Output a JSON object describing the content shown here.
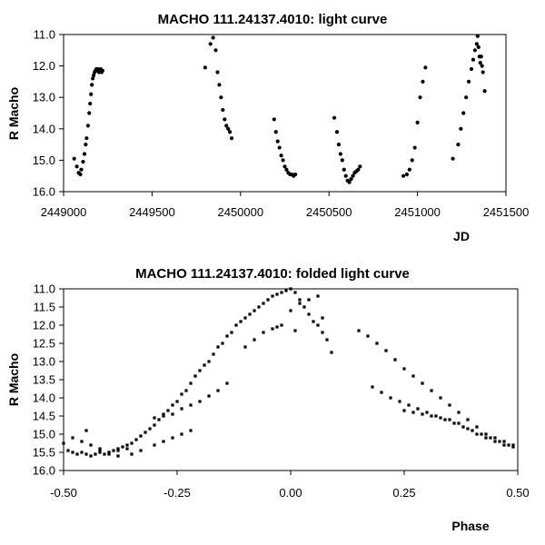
{
  "chart_data": [
    {
      "type": "scatter",
      "title": "MACHO 111.24137.4010: light curve",
      "xlabel": "JD",
      "ylabel": "R Macho",
      "xlim": [
        2449000,
        2451500
      ],
      "ylim": [
        11.0,
        16.0
      ],
      "y_inverted": true,
      "grid": false,
      "xticks": [
        2449000,
        2449500,
        2450000,
        2450500,
        2451000,
        2451500
      ],
      "xtick_labels": [
        "2449000",
        "2449500",
        "2450000",
        "2450500",
        "2451000",
        "2451500"
      ],
      "yticks": [
        11.0,
        12.0,
        13.0,
        14.0,
        15.0,
        16.0
      ],
      "ytick_labels": [
        "11.0",
        "12.0",
        "13.0",
        "14.0",
        "15.0",
        "16.0"
      ],
      "series": [
        {
          "x": [
            2449060,
            2449075,
            2449085,
            2449095,
            2449100,
            2449110,
            2449118,
            2449125,
            2449130,
            2449138,
            2449145,
            2449150,
            2449155,
            2449160,
            2449165,
            2449170,
            2449175,
            2449180,
            2449185,
            2449190,
            2449195,
            2449200,
            2449205,
            2449210,
            2449215,
            2449220,
            2449800,
            2449830,
            2449845,
            2449860,
            2449870,
            2449880,
            2449890,
            2449900,
            2449910,
            2449920,
            2449930,
            2449940,
            2449950,
            2450190,
            2450200,
            2450210,
            2450220,
            2450230,
            2450240,
            2450250,
            2450260,
            2450270,
            2450280,
            2450290,
            2450300,
            2450310,
            2450530,
            2450545,
            2450555,
            2450565,
            2450575,
            2450585,
            2450595,
            2450605,
            2450615,
            2450625,
            2450635,
            2450645,
            2450655,
            2450665,
            2450675,
            2450920,
            2450940,
            2450955,
            2450970,
            2450985,
            2451000,
            2451015,
            2451030,
            2451045,
            2451200,
            2451230,
            2451245,
            2451260,
            2451275,
            2451290,
            2451305,
            2451315,
            2451325,
            2451335,
            2451340,
            2451345,
            2451350,
            2451355,
            2451360,
            2451365,
            2451370,
            2451380
          ],
          "y": [
            14.95,
            15.2,
            15.4,
            15.45,
            15.3,
            15.05,
            14.8,
            14.5,
            14.3,
            13.9,
            13.5,
            13.2,
            12.9,
            12.6,
            12.4,
            12.3,
            12.2,
            12.15,
            12.1,
            12.15,
            12.1,
            12.2,
            12.15,
            12.1,
            12.2,
            12.15,
            12.05,
            11.3,
            11.1,
            11.5,
            12.2,
            12.6,
            13.0,
            13.4,
            13.7,
            13.9,
            14.0,
            14.1,
            14.3,
            13.7,
            14.1,
            14.4,
            14.6,
            14.85,
            15.0,
            15.2,
            15.3,
            15.4,
            15.45,
            15.45,
            15.5,
            15.45,
            13.65,
            14.1,
            14.5,
            14.8,
            15.0,
            15.3,
            15.5,
            15.65,
            15.7,
            15.6,
            15.5,
            15.4,
            15.35,
            15.3,
            15.2,
            15.5,
            15.45,
            15.3,
            15.0,
            14.6,
            13.8,
            13.0,
            12.5,
            12.05,
            14.95,
            14.5,
            14.0,
            13.5,
            13.0,
            12.5,
            12.1,
            11.8,
            11.5,
            11.3,
            11.05,
            11.4,
            11.7,
            11.9,
            11.7,
            12.0,
            12.2,
            12.8
          ]
        }
      ]
    },
    {
      "type": "scatter",
      "title": "MACHO 111.24137.4010: folded light curve",
      "xlabel": "Phase",
      "ylabel": "R Macho",
      "xlim": [
        -0.5,
        0.5
      ],
      "ylim": [
        11.0,
        16.0
      ],
      "y_inverted": true,
      "grid": false,
      "xticks": [
        -0.5,
        -0.25,
        0.0,
        0.25,
        0.5
      ],
      "xtick_labels": [
        "-0.50",
        "-0.25",
        "0.00",
        "0.25",
        "0.50"
      ],
      "yticks": [
        11.0,
        11.5,
        12.0,
        12.5,
        13.0,
        13.5,
        14.0,
        14.5,
        15.0,
        15.5,
        16.0
      ],
      "ytick_labels": [
        "11.0",
        "11.5",
        "12.0",
        "12.5",
        "13.0",
        "13.5",
        "14.0",
        "14.5",
        "15.0",
        "15.5",
        "16.0"
      ],
      "series": [
        {
          "x": [
            -0.5,
            -0.49,
            -0.48,
            -0.47,
            -0.46,
            -0.45,
            -0.44,
            -0.43,
            -0.42,
            -0.41,
            -0.4,
            -0.39,
            -0.38,
            -0.37,
            -0.36,
            -0.35,
            -0.34,
            -0.33,
            -0.32,
            -0.31,
            -0.3,
            -0.29,
            -0.28,
            -0.27,
            -0.26,
            -0.25,
            -0.24,
            -0.23,
            -0.22,
            -0.21,
            -0.2,
            -0.19,
            -0.18,
            -0.17,
            -0.16,
            -0.15,
            -0.14,
            -0.13,
            -0.12,
            -0.11,
            -0.1,
            -0.09,
            -0.08,
            -0.07,
            -0.06,
            -0.05,
            -0.04,
            -0.03,
            -0.02,
            -0.01,
            0.0,
            0.01,
            0.02,
            0.03,
            0.04,
            0.05,
            0.06,
            0.07,
            0.08,
            -0.45,
            -0.42,
            -0.4,
            -0.38,
            -0.35,
            -0.33,
            -0.3,
            -0.28,
            -0.26,
            -0.24,
            -0.22,
            -0.3,
            -0.28,
            -0.26,
            -0.24,
            -0.22,
            -0.2,
            -0.18,
            -0.16,
            -0.14,
            -0.48,
            -0.46,
            -0.44,
            -0.42,
            -0.4,
            -0.38,
            -0.36,
            -0.1,
            -0.08,
            -0.06,
            -0.04,
            -0.02,
            0.0,
            0.02,
            0.04,
            0.06,
            0.15,
            0.17,
            0.19,
            0.21,
            0.23,
            0.25,
            0.27,
            0.29,
            0.31,
            0.33,
            0.35,
            0.37,
            0.39,
            0.41,
            0.43,
            0.45,
            0.47,
            0.49,
            0.18,
            0.2,
            0.22,
            0.24,
            0.26,
            0.28,
            0.3,
            0.32,
            0.34,
            0.36,
            0.38,
            0.4,
            0.42,
            0.44,
            0.46,
            0.48,
            0.25,
            0.27,
            0.29,
            0.31,
            0.33,
            0.35,
            0.37,
            0.39,
            0.41,
            0.43,
            0.45,
            0.47,
            0.49,
            0.09,
            0.01,
            0.07,
            -0.03
          ],
          "y": [
            15.25,
            15.45,
            15.5,
            15.55,
            15.5,
            15.55,
            15.6,
            15.55,
            15.5,
            15.55,
            15.5,
            15.45,
            15.4,
            15.35,
            15.3,
            15.25,
            15.15,
            15.05,
            14.95,
            14.85,
            14.75,
            14.6,
            14.45,
            14.35,
            14.2,
            14.1,
            13.9,
            13.8,
            13.6,
            13.4,
            13.25,
            13.1,
            13.0,
            12.8,
            12.6,
            12.5,
            12.3,
            12.2,
            12.0,
            11.9,
            11.8,
            11.7,
            11.6,
            11.5,
            11.4,
            11.3,
            11.2,
            11.15,
            11.1,
            11.05,
            11.0,
            11.1,
            11.3,
            11.5,
            11.7,
            11.9,
            12.0,
            12.2,
            12.4,
            14.9,
            15.4,
            15.55,
            15.6,
            15.55,
            15.45,
            15.3,
            15.2,
            15.1,
            15.0,
            14.9,
            14.55,
            14.5,
            14.45,
            14.3,
            14.2,
            14.1,
            13.95,
            13.8,
            13.6,
            15.1,
            15.2,
            15.3,
            15.45,
            15.5,
            15.45,
            15.4,
            12.6,
            12.4,
            12.2,
            12.1,
            12.0,
            11.6,
            11.4,
            11.3,
            11.2,
            12.15,
            12.3,
            12.5,
            12.7,
            12.95,
            13.2,
            13.4,
            13.6,
            13.8,
            14.0,
            14.2,
            14.4,
            14.6,
            14.8,
            15.0,
            15.1,
            15.2,
            15.3,
            13.7,
            13.85,
            14.0,
            14.1,
            14.2,
            14.3,
            14.4,
            14.5,
            14.6,
            14.7,
            14.8,
            14.9,
            15.0,
            15.1,
            15.2,
            15.3,
            14.35,
            14.4,
            14.45,
            14.5,
            14.55,
            14.6,
            14.7,
            14.85,
            15.0,
            15.1,
            15.2,
            15.3,
            15.35,
            12.75,
            12.15,
            11.8,
            12.05
          ]
        }
      ]
    }
  ]
}
